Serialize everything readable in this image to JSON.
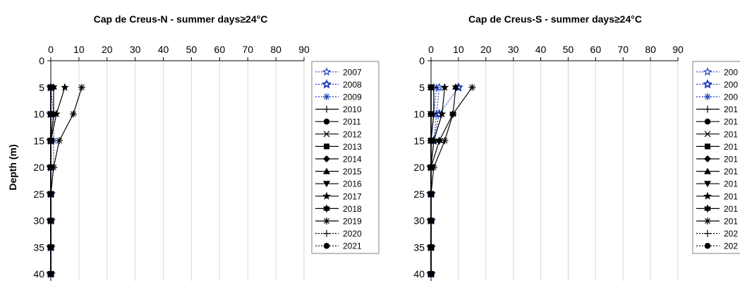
{
  "chart_data": [
    {
      "type": "line",
      "title": "Cap de Creus-N - summer days≥24°C",
      "xlabel": "",
      "ylabel": "Depth (m)",
      "xlim": [
        0,
        90
      ],
      "ylim": [
        0,
        40
      ],
      "x_ticks": [
        "0",
        "10",
        "20",
        "30",
        "40",
        "50",
        "60",
        "70",
        "80",
        "90"
      ],
      "y_ticks": [
        "0",
        "5",
        "10",
        "15",
        "20",
        "25",
        "30",
        "35",
        "40"
      ],
      "grid": "vertical",
      "legend_position": "right",
      "depths": [
        5,
        10,
        15,
        20,
        25,
        30,
        35,
        40
      ],
      "series": [
        {
          "name": "2007",
          "marker": "star-open",
          "color": "#1f3fbf",
          "dash": "2,2",
          "values": [
            0,
            0,
            0,
            0,
            0,
            0,
            0,
            0
          ]
        },
        {
          "name": "2008",
          "marker": "star-open-bold",
          "color": "#1f3fbf",
          "dash": "2,2",
          "values": [
            0,
            0,
            0,
            0,
            0,
            0,
            0,
            0
          ]
        },
        {
          "name": "2009",
          "marker": "asterisk",
          "color": "#1f3fbf",
          "dash": "2,2",
          "values": [
            0,
            1,
            1,
            1,
            0,
            0,
            0,
            0
          ]
        },
        {
          "name": "2010",
          "marker": "plus",
          "color": "#000000",
          "dash": "",
          "values": [
            0,
            0,
            0,
            0,
            0,
            0,
            0,
            0
          ]
        },
        {
          "name": "2011",
          "marker": "circle",
          "color": "#000000",
          "dash": "",
          "values": [
            0,
            0,
            0,
            0,
            0,
            0,
            0,
            0
          ]
        },
        {
          "name": "2012",
          "marker": "cross",
          "color": "#000000",
          "dash": "",
          "values": [
            0,
            0,
            0,
            0,
            0,
            0,
            0,
            0
          ]
        },
        {
          "name": "2013",
          "marker": "square",
          "color": "#000000",
          "dash": "",
          "values": [
            0,
            0,
            0,
            0,
            0,
            0,
            0,
            0
          ]
        },
        {
          "name": "2014",
          "marker": "diamond",
          "color": "#000000",
          "dash": "",
          "values": [
            0,
            0,
            0,
            0,
            0,
            0,
            0,
            0
          ]
        },
        {
          "name": "2015",
          "marker": "triangle-up",
          "color": "#000000",
          "dash": "",
          "values": [
            0,
            0,
            0,
            0,
            0,
            0,
            0,
            0
          ]
        },
        {
          "name": "2016",
          "marker": "triangle-down",
          "color": "#000000",
          "dash": "",
          "values": [
            0,
            0,
            0,
            0,
            0,
            0,
            0,
            0
          ]
        },
        {
          "name": "2017",
          "marker": "star",
          "color": "#000000",
          "dash": "",
          "values": [
            5,
            2,
            0,
            0,
            0,
            0,
            0,
            0
          ]
        },
        {
          "name": "2018",
          "marker": "star-filled-6",
          "color": "#000000",
          "dash": "",
          "values": [
            1,
            1,
            0,
            0,
            0,
            0,
            0,
            0
          ]
        },
        {
          "name": "2019",
          "marker": "asterisk",
          "color": "#000000",
          "dash": "",
          "values": [
            11,
            8,
            3,
            1,
            0,
            0,
            0,
            0
          ]
        },
        {
          "name": "2020",
          "marker": "plus",
          "color": "#000000",
          "dash": "2,2",
          "values": [
            0,
            0,
            0,
            0,
            0,
            0,
            0,
            0
          ]
        },
        {
          "name": "2021",
          "marker": "circle",
          "color": "#000000",
          "dash": "2,2",
          "values": [
            0,
            0,
            0,
            0,
            0,
            0,
            0,
            0
          ]
        }
      ]
    },
    {
      "type": "line",
      "title": "Cap de Creus-S - summer days≥24°C",
      "xlabel": "",
      "ylabel": "",
      "xlim": [
        0,
        90
      ],
      "ylim": [
        0,
        40
      ],
      "x_ticks": [
        "0",
        "10",
        "20",
        "30",
        "40",
        "50",
        "60",
        "70",
        "80",
        "90"
      ],
      "y_ticks": [
        "0",
        "5",
        "10",
        "15",
        "20",
        "25",
        "30",
        "35",
        "40"
      ],
      "grid": "vertical",
      "legend_position": "right (clipped)",
      "depths": [
        5,
        10,
        15,
        20,
        25,
        30,
        35,
        40
      ],
      "series": [
        {
          "name": "200",
          "marker": "star-open",
          "color": "#1f3fbf",
          "dash": "2,2",
          "values": [
            3,
            2,
            1,
            0,
            0,
            0,
            0,
            0
          ]
        },
        {
          "name": "200",
          "marker": "star-open-bold",
          "color": "#1f3fbf",
          "dash": "2,2",
          "values": [
            10,
            3,
            1,
            0,
            0,
            0,
            0,
            0
          ]
        },
        {
          "name": "200",
          "marker": "asterisk",
          "color": "#1f3fbf",
          "dash": "2,2",
          "values": [
            2,
            1,
            0,
            0,
            0,
            0,
            0,
            0
          ]
        },
        {
          "name": "201",
          "marker": "plus",
          "color": "#000000",
          "dash": "",
          "values": [
            1,
            1,
            0,
            0,
            0,
            0,
            0,
            0
          ]
        },
        {
          "name": "201",
          "marker": "circle",
          "color": "#000000",
          "dash": "",
          "values": [
            0,
            0,
            0,
            0,
            0,
            0,
            0,
            0
          ]
        },
        {
          "name": "201",
          "marker": "cross",
          "color": "#000000",
          "dash": "",
          "values": [
            0,
            0,
            0,
            0,
            0,
            0,
            0,
            0
          ]
        },
        {
          "name": "201",
          "marker": "square",
          "color": "#000000",
          "dash": "",
          "values": [
            0,
            0,
            0,
            0,
            0,
            0,
            0,
            0
          ]
        },
        {
          "name": "201",
          "marker": "diamond",
          "color": "#000000",
          "dash": "",
          "values": [
            0,
            0,
            0,
            0,
            0,
            0,
            0,
            0
          ]
        },
        {
          "name": "201",
          "marker": "triangle-up",
          "color": "#000000",
          "dash": "",
          "values": [
            0,
            0,
            0,
            0,
            0,
            0,
            0,
            0
          ]
        },
        {
          "name": "201",
          "marker": "triangle-down",
          "color": "#000000",
          "dash": "",
          "values": [
            0,
            0,
            0,
            0,
            0,
            0,
            0,
            0
          ]
        },
        {
          "name": "201",
          "marker": "star",
          "color": "#000000",
          "dash": "",
          "values": [
            5,
            4,
            1,
            0,
            0,
            0,
            0,
            0
          ]
        },
        {
          "name": "201",
          "marker": "star-filled-6",
          "color": "#000000",
          "dash": "",
          "values": [
            9,
            8,
            3,
            0,
            0,
            0,
            0,
            0
          ]
        },
        {
          "name": "201",
          "marker": "asterisk",
          "color": "#000000",
          "dash": "",
          "values": [
            15,
            8,
            5,
            1,
            0,
            0,
            0,
            0
          ]
        },
        {
          "name": "202",
          "marker": "plus",
          "color": "#000000",
          "dash": "2,2",
          "values": [
            1,
            1,
            0,
            0,
            0,
            0,
            0,
            0
          ]
        },
        {
          "name": "202",
          "marker": "circle",
          "color": "#000000",
          "dash": "2,2",
          "values": [
            0,
            0,
            0,
            0,
            0,
            0,
            0,
            0
          ]
        }
      ]
    }
  ]
}
